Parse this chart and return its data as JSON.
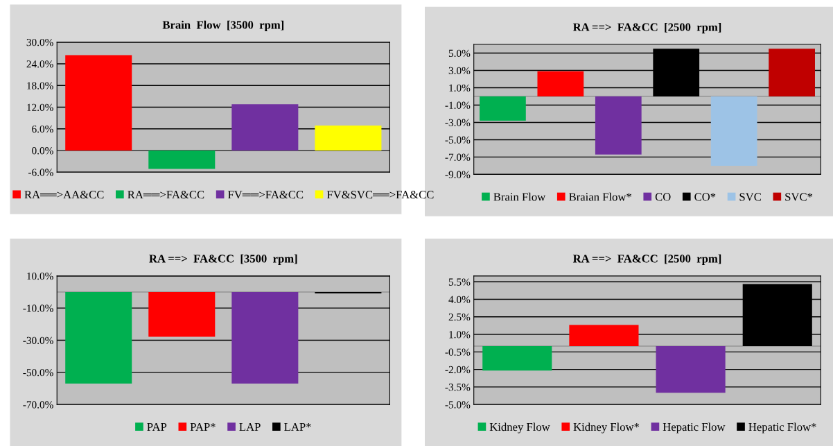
{
  "chart_data": [
    {
      "type": "bar",
      "title": "Brain  Flow  [3500  rpm]",
      "categories": [
        null
      ],
      "series": [
        {
          "name": "RA══>AA&CC",
          "color": "#ff0000",
          "values": [
            26.4
          ]
        },
        {
          "name": "RA══>FA&CC",
          "color": "#00b050",
          "values": [
            -5.1
          ]
        },
        {
          "name": "FV══>FA&CC",
          "color": "#7030a0",
          "values": [
            12.8
          ]
        },
        {
          "name": "FV&SVC══>FA&CC",
          "color": "#ffff00",
          "values": [
            6.9
          ]
        }
      ],
      "ylim": [
        -6,
        30
      ],
      "yticks": [
        {
          "value": -6,
          "label": "-6.0%"
        },
        {
          "value": 0,
          "label": "0.0%"
        },
        {
          "value": 6,
          "label": "6.0%"
        },
        {
          "value": 12,
          "label": "12.0%"
        },
        {
          "value": 18,
          "label": "18.0%"
        },
        {
          "value": 24,
          "label": "24.0%"
        },
        {
          "value": 30,
          "label": "30.0%"
        }
      ],
      "grid": "y",
      "legend": "bottom",
      "tick_labels": "y"
    },
    {
      "type": "bar",
      "title": "RA ==>  FA&CC  [2500  rpm]",
      "categories": [
        null
      ],
      "series": [
        {
          "name": "Brain Flow",
          "color": "#00b050",
          "values": [
            -2.8
          ]
        },
        {
          "name": "Braian Flow*",
          "color": "#ff0000",
          "values": [
            2.9
          ]
        },
        {
          "name": "CO",
          "color": "#7030a0",
          "values": [
            -6.7
          ]
        },
        {
          "name": "CO*",
          "color": "#000000",
          "values": [
            5.5
          ]
        },
        {
          "name": "SVC",
          "color": "#9dc3e6",
          "values": [
            -8.0
          ]
        },
        {
          "name": "SVC*",
          "color": "#c00000",
          "values": [
            5.5
          ]
        }
      ],
      "ylim": [
        -9,
        6
      ],
      "yticks": [
        {
          "value": -9,
          "label": "-9.0%"
        },
        {
          "value": -7,
          "label": "-7.0%"
        },
        {
          "value": -5,
          "label": "-5.0%"
        },
        {
          "value": -3,
          "label": "-3.0%"
        },
        {
          "value": -1,
          "label": "-1.0%"
        },
        {
          "value": 1,
          "label": "1.0%"
        },
        {
          "value": 3,
          "label": "3.0%"
        },
        {
          "value": 5,
          "label": "5.0%"
        }
      ],
      "grid": "y",
      "legend": "bottom",
      "tick_labels": "y"
    },
    {
      "type": "bar",
      "title": "RA ==>  FA&CC  [3500  rpm]",
      "categories": [
        null
      ],
      "series": [
        {
          "name": "PAP",
          "color": "#00b050",
          "values": [
            -57
          ]
        },
        {
          "name": "PAP*",
          "color": "#ff0000",
          "values": [
            -27.8
          ]
        },
        {
          "name": "LAP",
          "color": "#7030a0",
          "values": [
            -57
          ]
        },
        {
          "name": "LAP*",
          "color": "#000000",
          "values": [
            -0.9
          ]
        }
      ],
      "ylim": [
        -70,
        10
      ],
      "yticks": [
        {
          "value": -70,
          "label": "-70.0%"
        },
        {
          "value": -50,
          "label": "-50.0%"
        },
        {
          "value": -30,
          "label": "-30.0%"
        },
        {
          "value": -10,
          "label": "-10.0%"
        },
        {
          "value": 10,
          "label": "10.0%"
        }
      ],
      "grid": "y",
      "legend": "bottom",
      "tick_labels": "y"
    },
    {
      "type": "bar",
      "title": "RA ==>  FA&CC  [2500  rpm]",
      "categories": [
        null
      ],
      "series": [
        {
          "name": "Kidney Flow",
          "color": "#00b050",
          "values": [
            -2.1
          ]
        },
        {
          "name": "Kidney Flow*",
          "color": "#ff0000",
          "values": [
            1.8
          ]
        },
        {
          "name": "Hepatic Flow",
          "color": "#7030a0",
          "values": [
            -4.0
          ]
        },
        {
          "name": "Hepatic Flow*",
          "color": "#000000",
          "values": [
            5.3
          ]
        }
      ],
      "ylim": [
        -5,
        6
      ],
      "yticks": [
        {
          "value": -5,
          "label": "-5.0%"
        },
        {
          "value": -3.5,
          "label": "-3.5%"
        },
        {
          "value": -2,
          "label": "-2.0%"
        },
        {
          "value": -0.5,
          "label": "-0.5%"
        },
        {
          "value": 1,
          "label": "1.0%"
        },
        {
          "value": 2.5,
          "label": "2.5%"
        },
        {
          "value": 4,
          "label": "4.0%"
        },
        {
          "value": 5.5,
          "label": "5.5%"
        }
      ],
      "grid": "y",
      "legend": "bottom",
      "tick_labels": "y"
    }
  ]
}
